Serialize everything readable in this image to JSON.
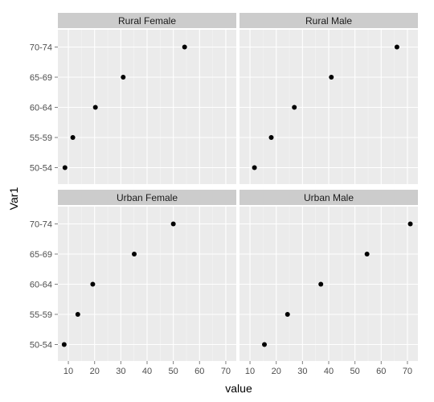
{
  "chart_data": {
    "type": "scatter",
    "facet_layout": "2x2",
    "xlabel": "value",
    "ylabel": "Var1",
    "xlim": [
      6,
      74
    ],
    "xticks": [
      10,
      20,
      30,
      40,
      50,
      60,
      70
    ],
    "categories": [
      "50-54",
      "55-59",
      "60-64",
      "65-69",
      "70-74"
    ],
    "grid": true,
    "panels": [
      {
        "title": "Rural Female",
        "x": [
          8.7,
          11.7,
          20.3,
          30.9,
          54.3
        ],
        "y": [
          "50-54",
          "55-59",
          "60-64",
          "65-69",
          "70-74"
        ]
      },
      {
        "title": "Rural Male",
        "x": [
          11.7,
          18.1,
          26.9,
          41.0,
          66.0
        ],
        "y": [
          "50-54",
          "55-59",
          "60-64",
          "65-69",
          "70-74"
        ]
      },
      {
        "title": "Urban Female",
        "x": [
          8.4,
          13.6,
          19.3,
          35.1,
          50.0
        ],
        "y": [
          "50-54",
          "55-59",
          "60-64",
          "65-69",
          "70-74"
        ]
      },
      {
        "title": "Urban Male",
        "x": [
          15.5,
          24.3,
          37.0,
          54.6,
          71.1
        ],
        "y": [
          "50-54",
          "55-59",
          "60-64",
          "65-69",
          "70-74"
        ]
      }
    ]
  }
}
